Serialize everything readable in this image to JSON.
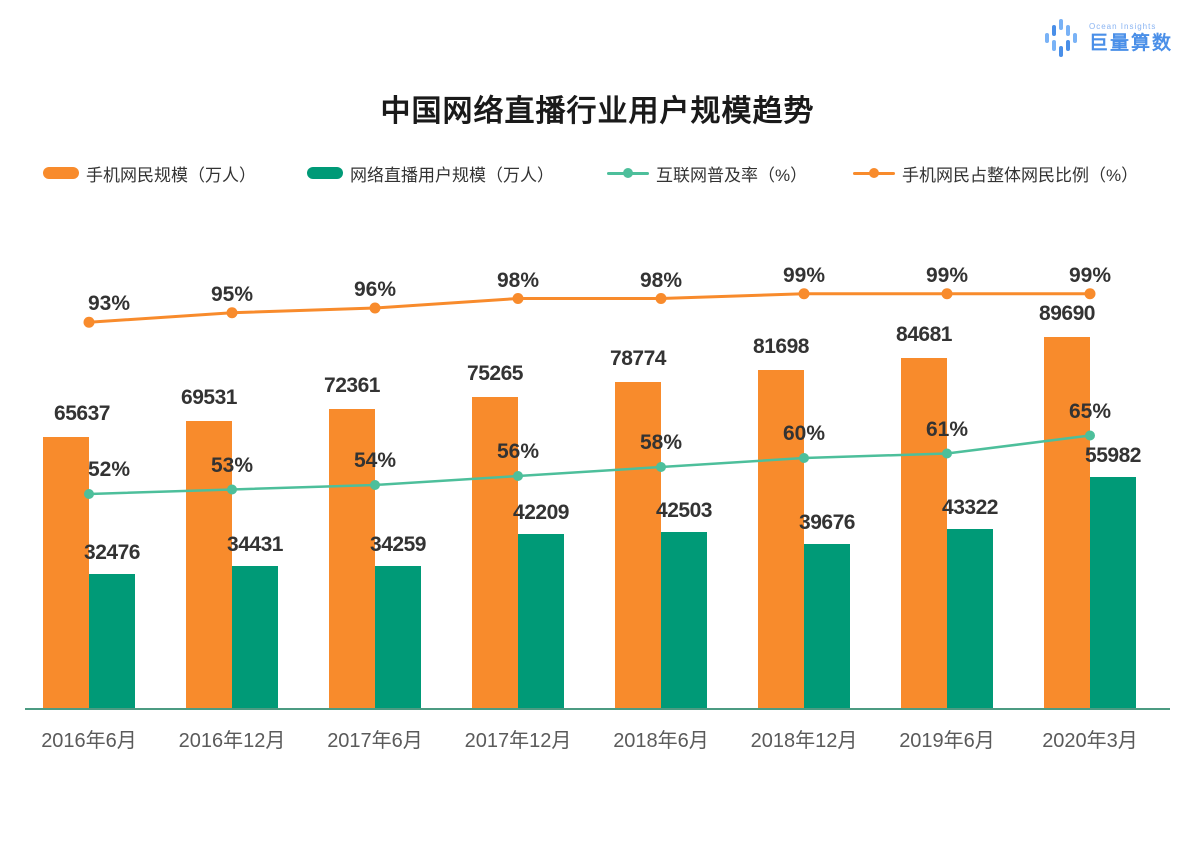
{
  "logo": {
    "brand_en": "Ocean Insights",
    "brand_cn": "巨量算数",
    "icon": "equalizer-bars-icon",
    "color": "#4a8fe8"
  },
  "title": "中国网络直播行业用户规模趋势",
  "legend": {
    "items": [
      {
        "label": "手机网民规模（万人）",
        "type": "bar",
        "color": "#f88b2c"
      },
      {
        "label": "网络直播用户规模（万人）",
        "type": "bar",
        "color": "#009a77"
      },
      {
        "label": "互联网普及率（%）",
        "type": "line",
        "color": "#4dbf9b"
      },
      {
        "label": "手机网民占整体网民比例（%）",
        "type": "line",
        "color": "#f88b2c"
      }
    ]
  },
  "chart_data": {
    "type": "bar+line",
    "categories": [
      "2016年6月",
      "2016年12月",
      "2017年6月",
      "2017年12月",
      "2018年6月",
      "2018年12月",
      "2019年6月",
      "2020年3月"
    ],
    "series": [
      {
        "name": "手机网民规模（万人）",
        "type": "bar",
        "color": "#f88b2c",
        "values": [
          65637,
          69531,
          72361,
          75265,
          78774,
          81698,
          84681,
          89690
        ]
      },
      {
        "name": "网络直播用户规模（万人）",
        "type": "bar",
        "color": "#009a77",
        "values": [
          32476,
          34431,
          34259,
          42209,
          42503,
          39676,
          43322,
          55982
        ]
      },
      {
        "name": "互联网普及率（%）",
        "type": "line",
        "color": "#4dbf9b",
        "unit": "%",
        "values": [
          52,
          53,
          54,
          56,
          58,
          60,
          61,
          65
        ]
      },
      {
        "name": "手机网民占整体网民比例（%）",
        "type": "line",
        "color": "#f88b2c",
        "unit": "%",
        "values": [
          93,
          95,
          96,
          98,
          98,
          99,
          99,
          99
        ]
      }
    ],
    "value_labels_shown": true,
    "grid": false,
    "y_axis_visible": false,
    "axis_line_color": "#4c9b82",
    "label_color": "#333333",
    "x_label_color": "#5a5a5a"
  }
}
